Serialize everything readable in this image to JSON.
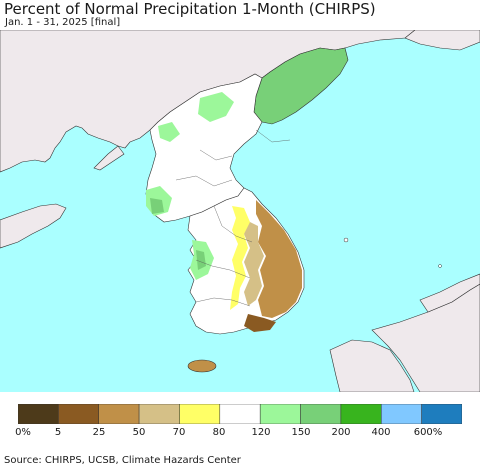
{
  "title": "Percent of Normal Precipitation 1-Month (CHIRPS)",
  "subtitle": "Jan. 1 - 31, 2025 [final]",
  "source": "Source: CHIRPS, UCSB, Climate Hazards Center",
  "colors": {
    "ocean": "#aaffff",
    "land_outside": "#efe9ec",
    "border": "#333333"
  },
  "legend": {
    "colors": [
      "#4d3a1a",
      "#8a5a22",
      "#c09048",
      "#d5c087",
      "#ffff66",
      "#ffffff",
      "#9cf79a",
      "#78d078",
      "#38b41e",
      "#80c8ff",
      "#1e7dbe"
    ],
    "labels": [
      "0%",
      "5",
      "25",
      "50",
      "70",
      "80",
      "120",
      "150",
      "200",
      "400",
      "600%"
    ]
  }
}
